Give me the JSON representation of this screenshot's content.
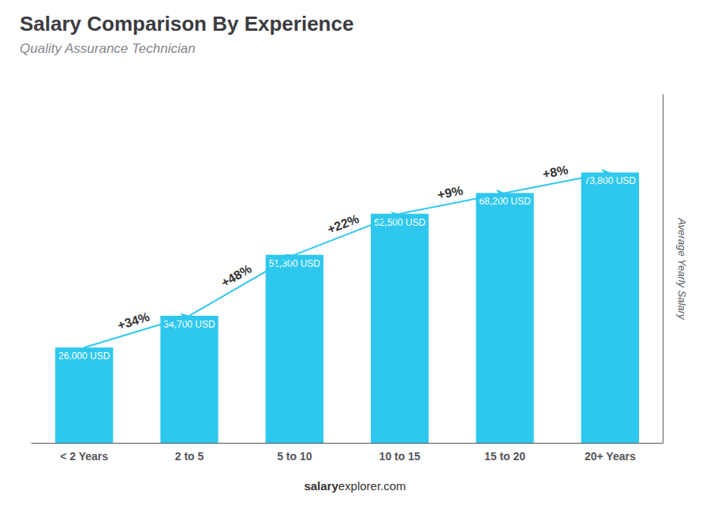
{
  "chart_data": {
    "type": "bar",
    "title": "Salary Comparison By Experience",
    "subtitle": "Quality Assurance Technician",
    "categories": [
      "< 2 Years",
      "2 to 5",
      "5 to 10",
      "10 to 15",
      "15 to 20",
      "20+ Years"
    ],
    "values": [
      26000,
      34700,
      51300,
      62500,
      68200,
      73800
    ],
    "value_labels": [
      "26,000 USD",
      "34,700 USD",
      "51,300 USD",
      "62,500 USD",
      "68,200 USD",
      "73,800 USD"
    ],
    "data_labels": true,
    "annotations": [
      "+34%",
      "+48%",
      "+22%",
      "+9%",
      "+8%"
    ],
    "color": "#2ec8ee",
    "ylabel": "Average Yearly Salary",
    "ylim": [
      0,
      95000
    ],
    "yticks": [],
    "grid": false,
    "tick_labels": "x",
    "footer": [
      "salary",
      "explorer.com"
    ]
  }
}
